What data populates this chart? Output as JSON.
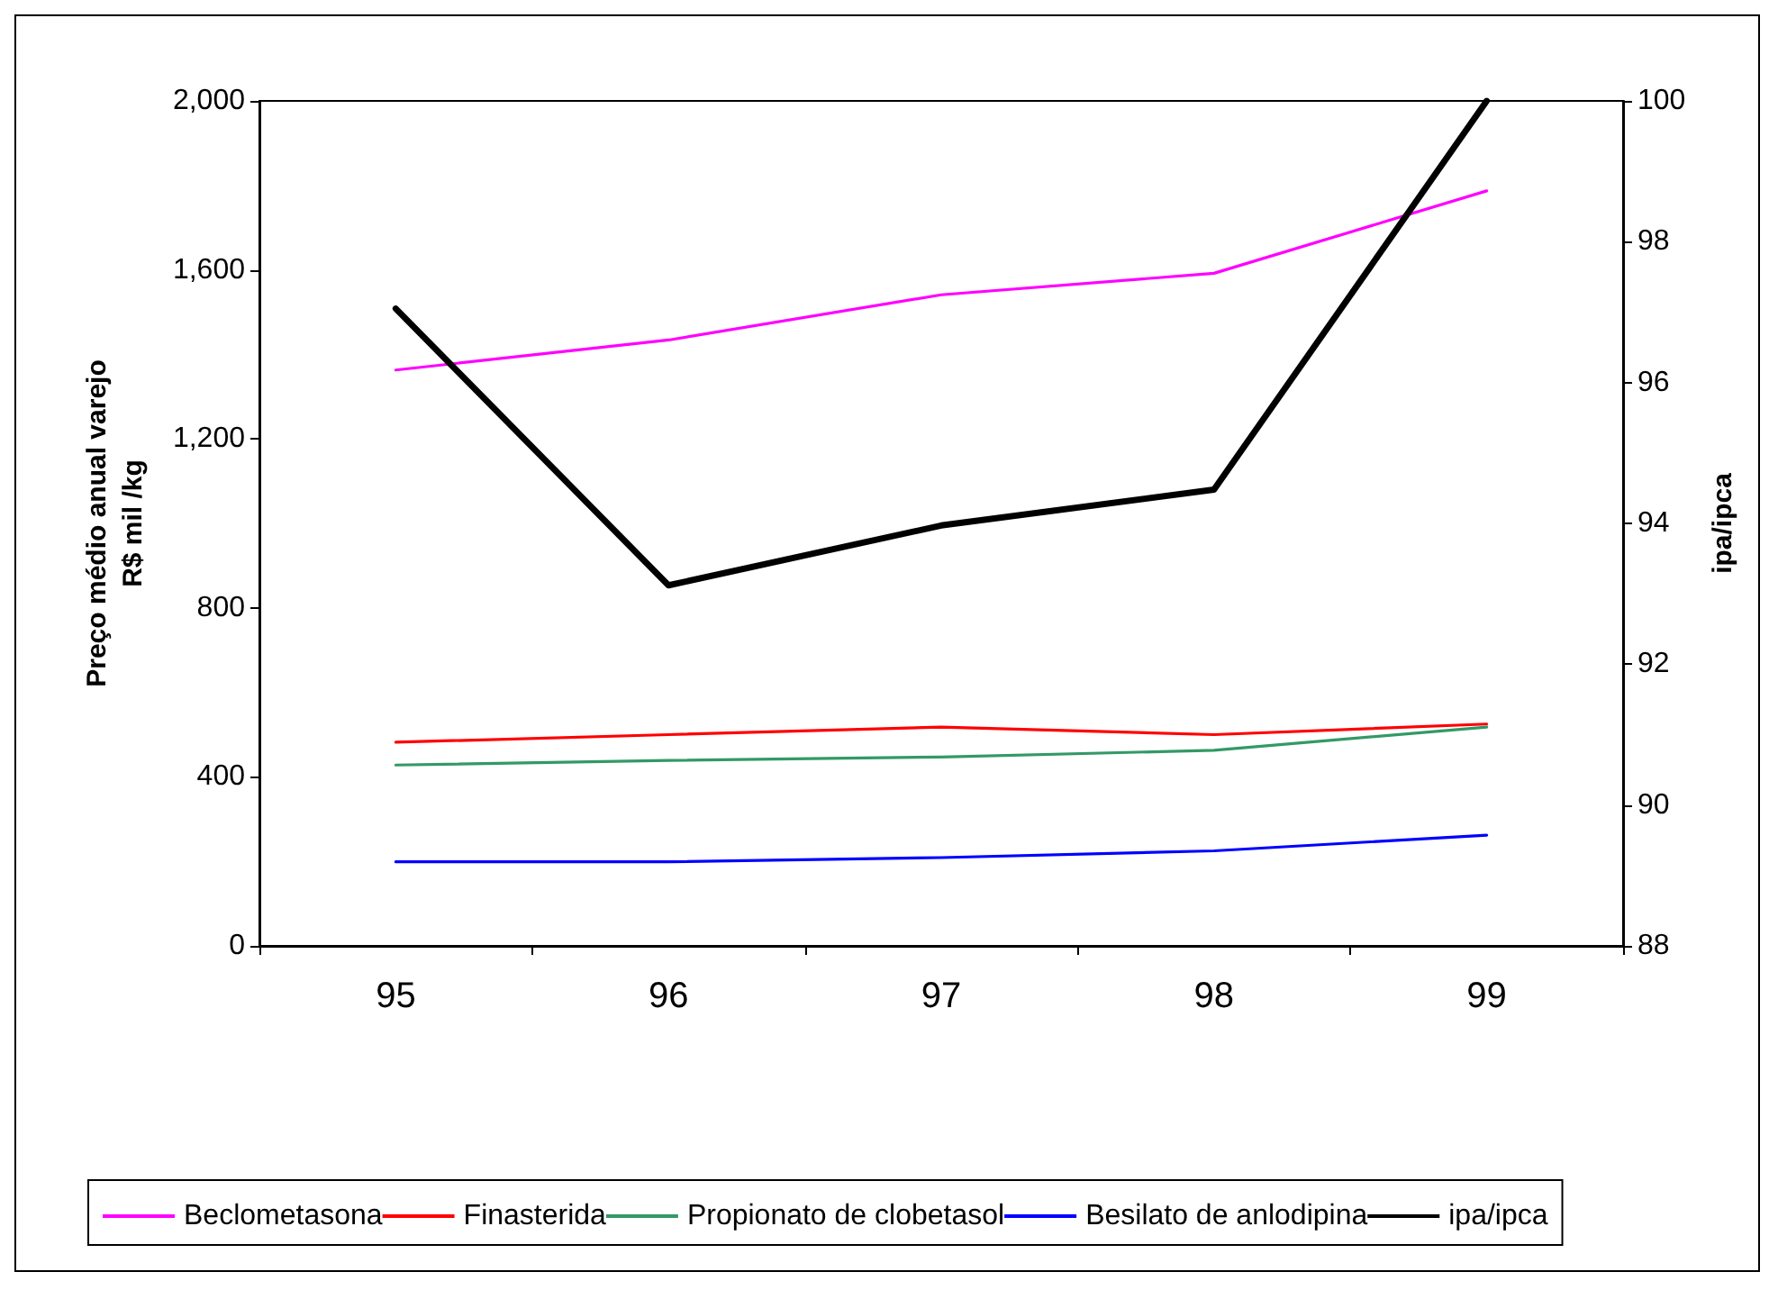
{
  "chart_data": {
    "type": "line",
    "categories": [
      "95",
      "96",
      "97",
      "98",
      "99"
    ],
    "ylabel": "Preço médio anual varejo\nR$ mil /kg",
    "y2label": "ipa/ipca",
    "ylim": [
      0,
      2000
    ],
    "yticks": [
      0,
      400,
      800,
      {
        "value": 1200,
        "label": "1,200"
      },
      {
        "value": 1600,
        "label": "1,600"
      },
      {
        "value": 2000,
        "label": "2,000"
      }
    ],
    "y2lim": [
      88,
      100
    ],
    "y2ticks": [
      88,
      90,
      92,
      94,
      96,
      98,
      100
    ],
    "grid": false,
    "legend": "bottom",
    "marker": "none",
    "line_style": "solid",
    "series": [
      {
        "name": "Beclometasona",
        "color": "#ff00ff",
        "values": [
          1363,
          1434,
          1541,
          1592,
          1787
        ]
      },
      {
        "name": "Finasterida",
        "color": "#ff0000",
        "values": [
          482,
          500,
          518,
          500,
          525
        ]
      },
      {
        "name": "Propionato de clobetasol",
        "color": "#339966",
        "values": [
          428,
          439,
          447,
          463,
          518
        ]
      },
      {
        "name": "Besilato de anlodipina",
        "color": "#0000ff",
        "values": [
          199,
          199,
          209,
          225,
          262
        ]
      },
      {
        "name": "ipa/ipca",
        "color": "#000000",
        "axis": "y2",
        "values": [
          97.05,
          93.12,
          93.97,
          94.48,
          100
        ]
      }
    ]
  }
}
